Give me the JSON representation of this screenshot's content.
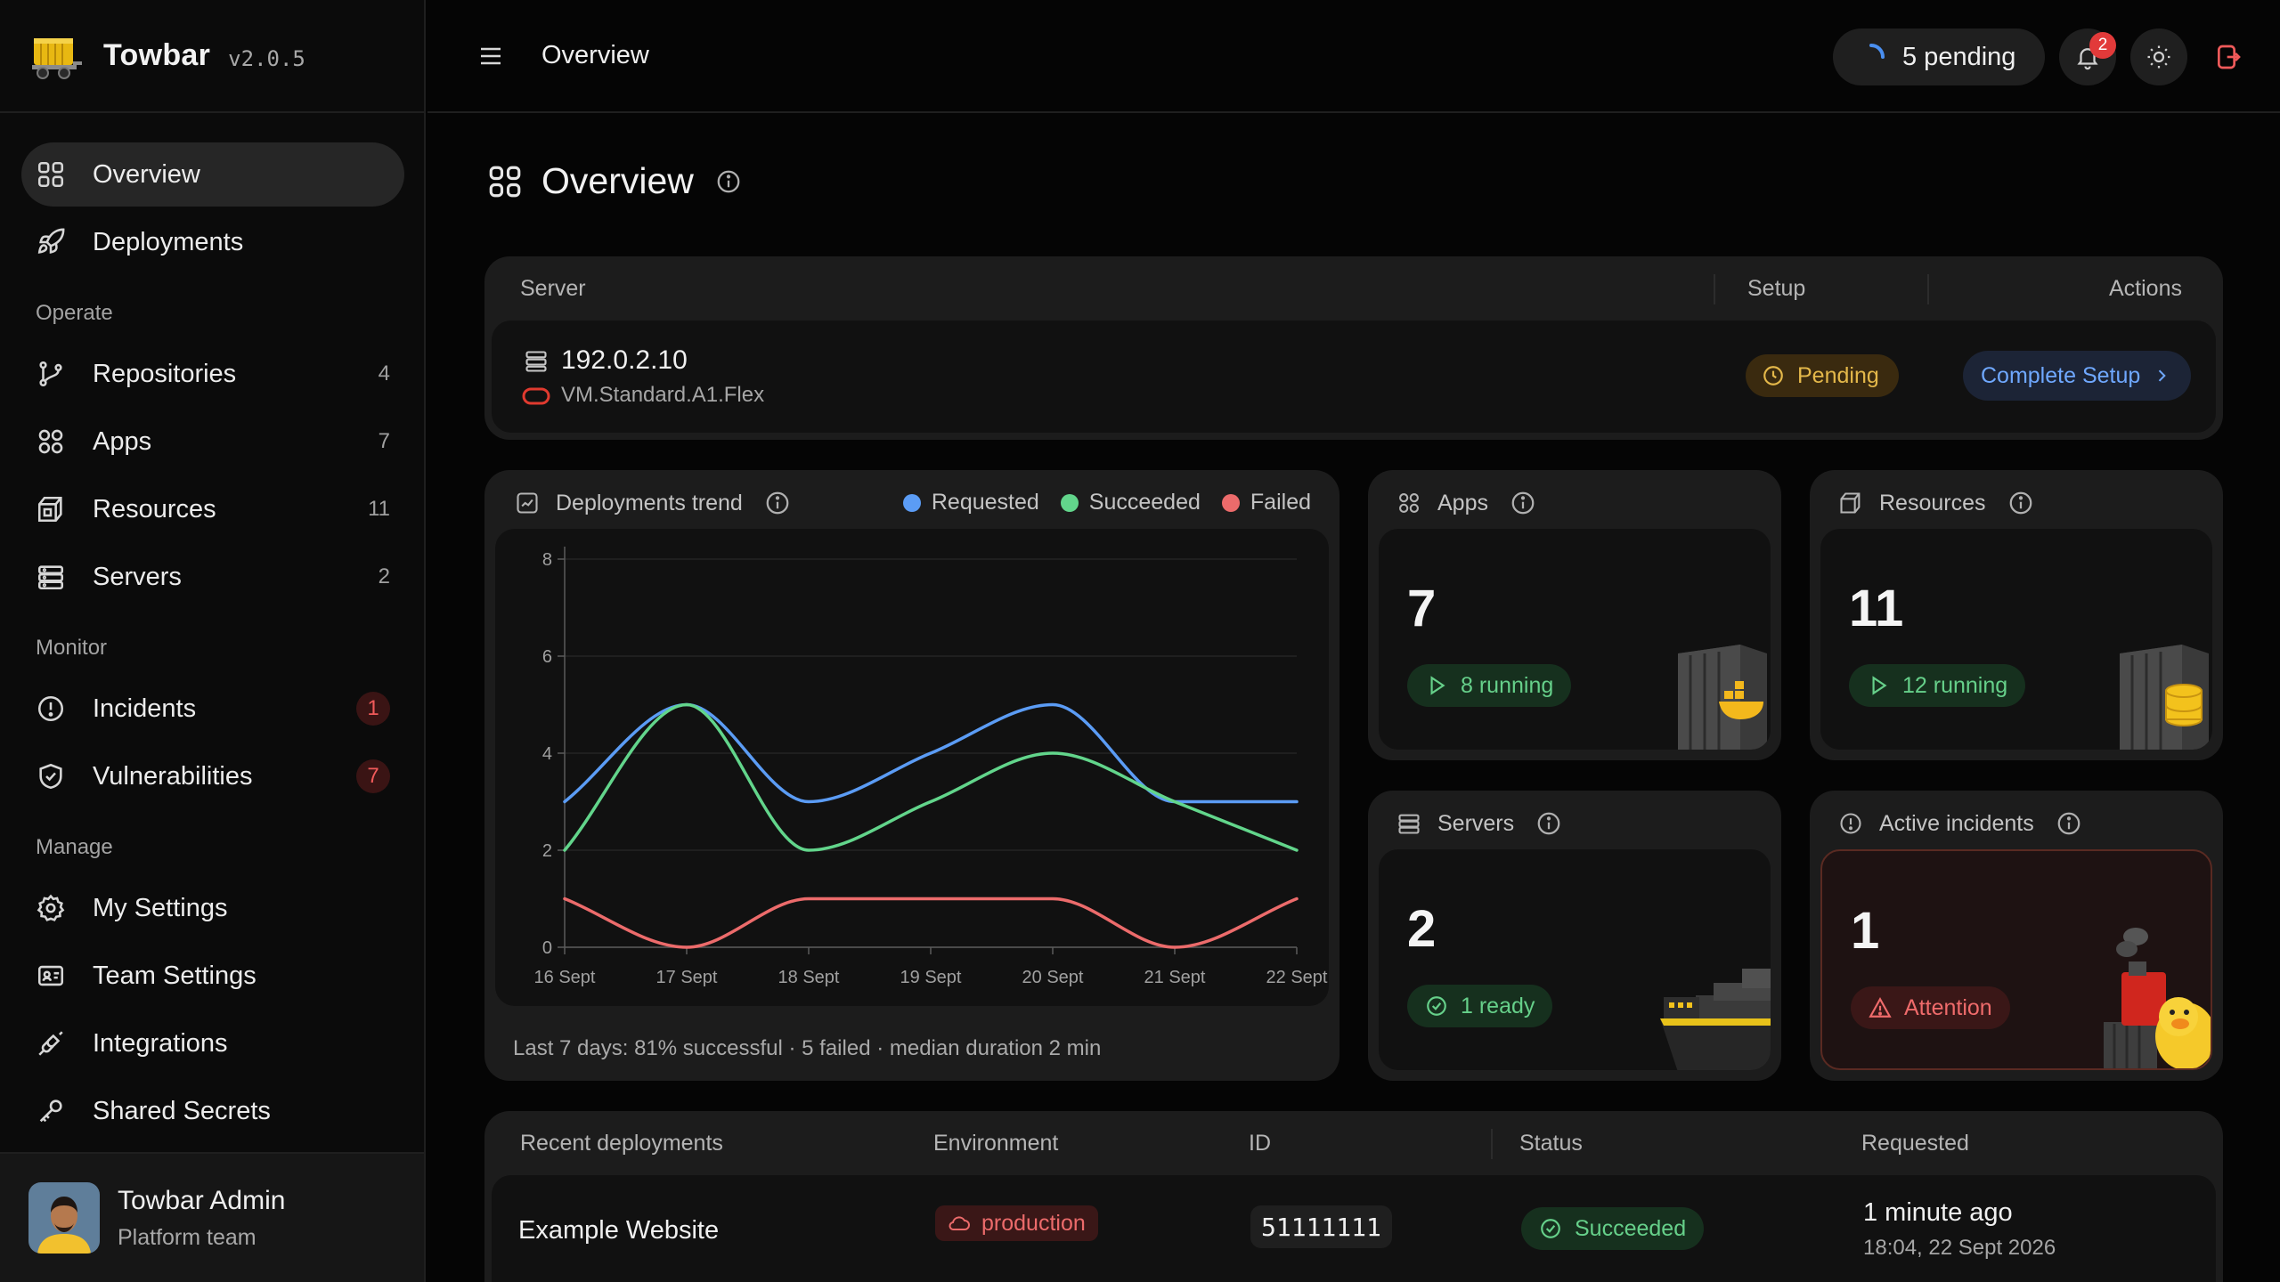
{
  "app": {
    "name": "Towbar",
    "version": "v2.0.5"
  },
  "sidebar": {
    "primary": [
      {
        "label": "Overview",
        "icon": "grid-icon",
        "active": true
      },
      {
        "label": "Deployments",
        "icon": "rocket-icon"
      }
    ],
    "sections": [
      {
        "title": "Operate",
        "items": [
          {
            "label": "Repositories",
            "count": "4",
            "icon": "git-branch-icon"
          },
          {
            "label": "Apps",
            "count": "7",
            "icon": "grid-icon"
          },
          {
            "label": "Resources",
            "count": "11",
            "icon": "box-icon"
          },
          {
            "label": "Servers",
            "count": "2",
            "icon": "server-icon"
          }
        ]
      },
      {
        "title": "Monitor",
        "items": [
          {
            "label": "Incidents",
            "count": "1",
            "icon": "alert-circle-icon"
          },
          {
            "label": "Vulnerabilities",
            "count": "7",
            "icon": "shield-check-icon"
          }
        ]
      },
      {
        "title": "Manage",
        "items": [
          {
            "label": "My Settings",
            "icon": "gear-icon"
          },
          {
            "label": "Team Settings",
            "icon": "id-card-icon"
          },
          {
            "label": "Integrations",
            "icon": "plug-icon"
          },
          {
            "label": "Shared Secrets",
            "icon": "key-icon"
          }
        ]
      }
    ],
    "user": {
      "name": "Towbar Admin",
      "team": "Platform team"
    }
  },
  "topbar": {
    "title": "Overview",
    "pending": "5 pending",
    "notifications": "2"
  },
  "page": {
    "title": "Overview"
  },
  "server_card": {
    "headers": {
      "server": "Server",
      "setup": "Setup",
      "actions": "Actions"
    },
    "ip": "192.0.2.10",
    "type": "VM.Standard.A1.Flex",
    "status": "Pending",
    "action": "Complete Setup"
  },
  "trend": {
    "title": "Deployments trend",
    "footer": "Last 7 days: 81% successful · 5 failed · median duration 2 min"
  },
  "chart_data": {
    "type": "line",
    "title": "Deployments trend",
    "x": [
      "16 Sept",
      "17 Sept",
      "18 Sept",
      "19 Sept",
      "20 Sept",
      "21 Sept",
      "22 Sept"
    ],
    "yticks": [
      0,
      2,
      4,
      6,
      8
    ],
    "ylim": [
      0,
      8
    ],
    "legend": "top-right",
    "grid": true,
    "series": [
      {
        "name": "Requested",
        "color": "#5b9cf5",
        "values": [
          3,
          5,
          3,
          4,
          5,
          3,
          3
        ]
      },
      {
        "name": "Succeeded",
        "color": "#62d58b",
        "values": [
          2,
          5,
          2,
          3,
          4,
          3,
          2
        ]
      },
      {
        "name": "Failed",
        "color": "#ec6b6b",
        "values": [
          1,
          0,
          1,
          1,
          1,
          0,
          1
        ]
      }
    ]
  },
  "stats": {
    "apps": {
      "title": "Apps",
      "value": "7",
      "badge": "8 running"
    },
    "resources": {
      "title": "Resources",
      "value": "11",
      "badge": "12 running"
    },
    "servers": {
      "title": "Servers",
      "value": "2",
      "badge": "1 ready"
    },
    "incidents": {
      "title": "Active incidents",
      "value": "1",
      "badge": "Attention"
    }
  },
  "recent": {
    "headers": {
      "name": "Recent deployments",
      "env": "Environment",
      "id": "ID",
      "status": "Status",
      "requested": "Requested"
    },
    "rows": [
      {
        "name": "Example Website",
        "env": "production",
        "id": "51111111",
        "status": "Succeeded",
        "time": "1 minute ago",
        "date": "18:04, 22 Sept 2026"
      }
    ]
  }
}
